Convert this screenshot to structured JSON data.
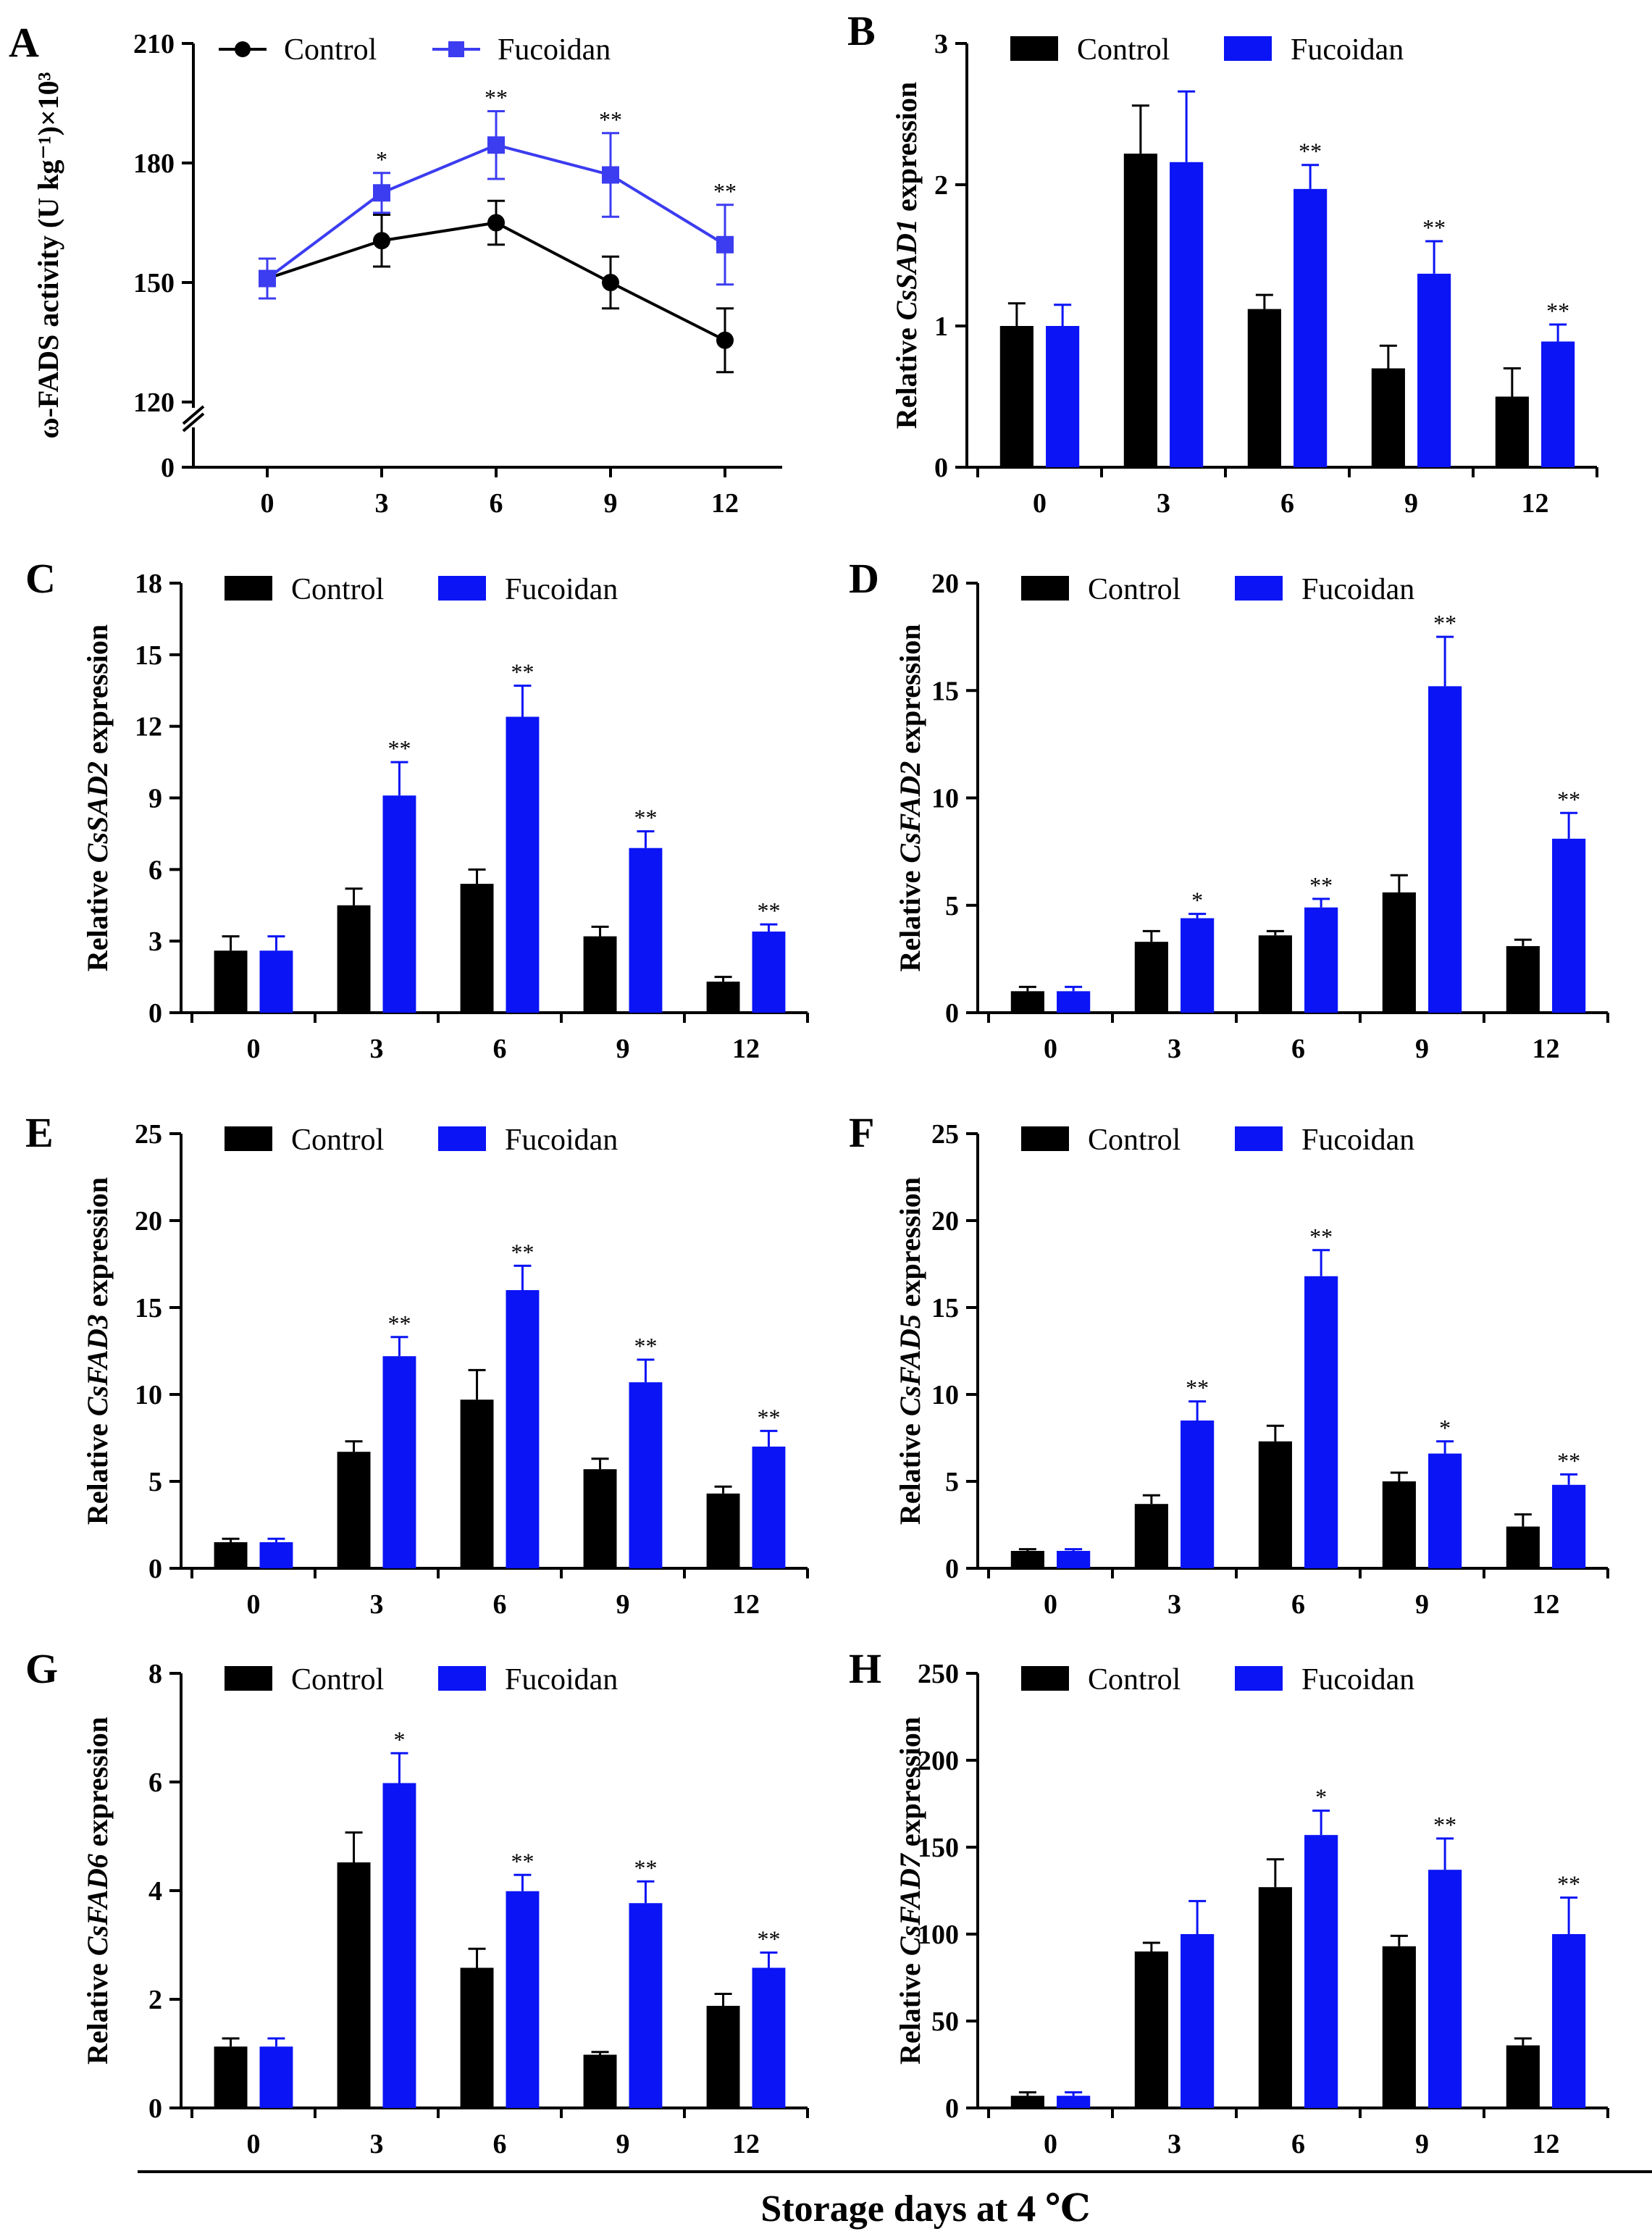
{
  "colors": {
    "control": "#000000",
    "fucoidan": "#0a14f5",
    "fucoidan_line": "#3c3cf0"
  },
  "legend": {
    "control": "Control",
    "fucoidan": "Fucoidan"
  },
  "x_axis_title": "Storage days at 4 ℃",
  "chart_data": [
    {
      "id": "A",
      "letter": "A",
      "type": "line",
      "ylabel": "ω-FADS activity (U kg⁻¹)×10³",
      "categories": [
        "0",
        "3",
        "6",
        "9",
        "12"
      ],
      "ylim": [
        120,
        210
      ],
      "yticks": [
        "120",
        "150",
        "180",
        "210"
      ],
      "broken_axis_label": "0",
      "series": [
        {
          "name": "Control",
          "values": [
            151,
            160.5,
            165,
            150,
            135.5
          ],
          "errors": [
            5,
            6.5,
            5.5,
            6.5,
            8
          ],
          "stars": [
            "",
            "",
            "",
            "",
            ""
          ]
        },
        {
          "name": "Fucoidan",
          "values": [
            151,
            172.5,
            184.5,
            177,
            159.5
          ],
          "errors": [
            5,
            5,
            8.5,
            10.5,
            10
          ],
          "stars": [
            "",
            "*",
            "**",
            "**",
            "**"
          ]
        }
      ]
    },
    {
      "id": "B",
      "letter": "B",
      "type": "bar",
      "ylabel_prefix": "Relative ",
      "gene": "CsSAD1",
      "ylabel_suffix": " expression",
      "categories": [
        "0",
        "3",
        "6",
        "9",
        "12"
      ],
      "ylim": [
        0,
        3
      ],
      "yticks": [
        "0",
        "1",
        "2",
        "3"
      ],
      "series": [
        {
          "name": "Control",
          "values": [
            1.0,
            2.22,
            1.12,
            0.7,
            0.5
          ],
          "errors": [
            0.16,
            0.34,
            0.1,
            0.16,
            0.2
          ],
          "stars": [
            "",
            "",
            "",
            "",
            ""
          ]
        },
        {
          "name": "Fucoidan",
          "values": [
            1.0,
            2.16,
            1.97,
            1.37,
            0.89
          ],
          "errors": [
            0.15,
            0.5,
            0.17,
            0.23,
            0.12
          ],
          "stars": [
            "",
            "",
            "**",
            "**",
            "**"
          ]
        }
      ]
    },
    {
      "id": "C",
      "letter": "C",
      "type": "bar",
      "ylabel_prefix": "Relative ",
      "gene": "CsSAD2",
      "ylabel_suffix": " expression",
      "categories": [
        "0",
        "3",
        "6",
        "9",
        "12"
      ],
      "ylim": [
        0,
        18
      ],
      "yticks": [
        "0",
        "3",
        "6",
        "9",
        "12",
        "15",
        "18"
      ],
      "series": [
        {
          "name": "Control",
          "values": [
            2.6,
            4.5,
            5.4,
            3.2,
            1.3
          ],
          "errors": [
            0.6,
            0.7,
            0.6,
            0.4,
            0.2
          ],
          "stars": [
            "",
            "",
            "",
            "",
            ""
          ]
        },
        {
          "name": "Fucoidan",
          "values": [
            2.6,
            9.1,
            12.4,
            6.9,
            3.4
          ],
          "errors": [
            0.6,
            1.4,
            1.3,
            0.7,
            0.3
          ],
          "stars": [
            "",
            "**",
            "**",
            "**",
            "**"
          ]
        }
      ]
    },
    {
      "id": "D",
      "letter": "D",
      "type": "bar",
      "ylabel_prefix": "Relative ",
      "gene": "CsFAD2",
      "ylabel_suffix": " expression",
      "categories": [
        "0",
        "3",
        "6",
        "9",
        "12"
      ],
      "ylim": [
        0,
        20
      ],
      "yticks": [
        "0",
        "5",
        "10",
        "15",
        "20"
      ],
      "series": [
        {
          "name": "Control",
          "values": [
            1.0,
            3.3,
            3.6,
            5.6,
            3.1
          ],
          "errors": [
            0.2,
            0.5,
            0.2,
            0.8,
            0.3
          ],
          "stars": [
            "",
            "",
            "",
            "",
            ""
          ]
        },
        {
          "name": "Fucoidan",
          "values": [
            1.0,
            4.4,
            4.9,
            15.2,
            8.1
          ],
          "errors": [
            0.2,
            0.2,
            0.4,
            2.3,
            1.2
          ],
          "stars": [
            "",
            "*",
            "**",
            "**",
            "**"
          ]
        }
      ]
    },
    {
      "id": "E",
      "letter": "E",
      "type": "bar",
      "ylabel_prefix": "Relative ",
      "gene": "CsFAD3",
      "ylabel_suffix": " expression",
      "categories": [
        "0",
        "3",
        "6",
        "9",
        "12"
      ],
      "ylim": [
        0,
        25
      ],
      "yticks": [
        "0",
        "5",
        "10",
        "15",
        "20",
        "25"
      ],
      "series": [
        {
          "name": "Control",
          "values": [
            1.5,
            6.7,
            9.7,
            5.7,
            4.3
          ],
          "errors": [
            0.2,
            0.6,
            1.7,
            0.6,
            0.4
          ],
          "stars": [
            "",
            "",
            "",
            "",
            ""
          ]
        },
        {
          "name": "Fucoidan",
          "values": [
            1.5,
            12.2,
            16.0,
            10.7,
            7.0
          ],
          "errors": [
            0.2,
            1.1,
            1.4,
            1.3,
            0.9
          ],
          "stars": [
            "",
            "**",
            "**",
            "**",
            "**"
          ]
        }
      ]
    },
    {
      "id": "F",
      "letter": "F",
      "type": "bar",
      "ylabel_prefix": "Relative ",
      "gene": "CsFAD5",
      "ylabel_suffix": " expression",
      "categories": [
        "0",
        "3",
        "6",
        "9",
        "12"
      ],
      "ylim": [
        0,
        25
      ],
      "yticks": [
        "0",
        "5",
        "10",
        "15",
        "20",
        "25"
      ],
      "series": [
        {
          "name": "Control",
          "values": [
            1.0,
            3.7,
            7.3,
            5.0,
            2.4
          ],
          "errors": [
            0.1,
            0.5,
            0.9,
            0.5,
            0.7
          ],
          "stars": [
            "",
            "",
            "",
            "",
            ""
          ]
        },
        {
          "name": "Fucoidan",
          "values": [
            1.0,
            8.5,
            16.8,
            6.6,
            4.8
          ],
          "errors": [
            0.1,
            1.1,
            1.5,
            0.7,
            0.6
          ],
          "stars": [
            "",
            "**",
            "**",
            "*",
            "**"
          ]
        }
      ]
    },
    {
      "id": "G",
      "letter": "G",
      "type": "bar",
      "ylabel_prefix": "Relative ",
      "gene": "CsFAD6",
      "ylabel_suffix": " expression",
      "categories": [
        "0",
        "3",
        "6",
        "9",
        "12"
      ],
      "ylim": [
        0,
        8
      ],
      "yticks": [
        "0",
        "2",
        "4",
        "6",
        "8"
      ],
      "series": [
        {
          "name": "Control",
          "values": [
            1.13,
            4.52,
            2.58,
            0.98,
            1.88
          ],
          "errors": [
            0.15,
            0.55,
            0.35,
            0.05,
            0.22
          ],
          "stars": [
            "",
            "",
            "",
            "",
            ""
          ]
        },
        {
          "name": "Fucoidan",
          "values": [
            1.13,
            5.98,
            3.99,
            3.77,
            2.58
          ],
          "errors": [
            0.15,
            0.55,
            0.3,
            0.4,
            0.28
          ],
          "stars": [
            "",
            "*",
            "**",
            "**",
            "**"
          ]
        }
      ]
    },
    {
      "id": "H",
      "letter": "H",
      "type": "bar",
      "ylabel_prefix": "Relative ",
      "gene": "CsFAD7",
      "ylabel_suffix": " expression",
      "categories": [
        "0",
        "3",
        "6",
        "9",
        "12"
      ],
      "ylim": [
        0,
        250
      ],
      "yticks": [
        "0",
        "50",
        "100",
        "150",
        "200",
        "250"
      ],
      "series": [
        {
          "name": "Control",
          "values": [
            7,
            90,
            127,
            93,
            36
          ],
          "errors": [
            2,
            5,
            16,
            6,
            4
          ],
          "stars": [
            "",
            "",
            "",
            "",
            ""
          ]
        },
        {
          "name": "Fucoidan",
          "values": [
            7,
            100,
            157,
            137,
            100
          ],
          "errors": [
            2,
            19,
            14,
            18,
            21
          ],
          "stars": [
            "",
            "",
            "*",
            "**",
            "**"
          ]
        }
      ]
    }
  ]
}
